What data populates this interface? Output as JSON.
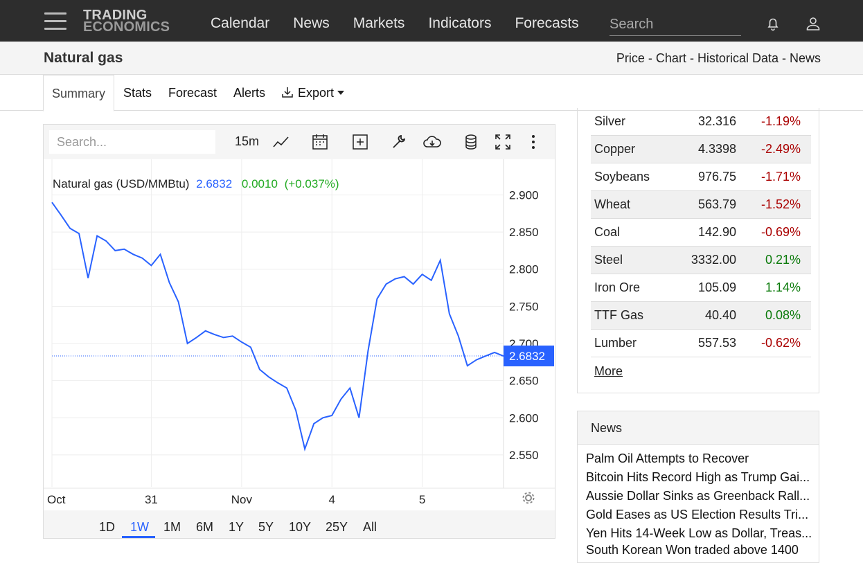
{
  "header": {
    "logo_top": "TRADING",
    "logo_bottom": "ECONOMICS",
    "nav": [
      "Calendar",
      "News",
      "Markets",
      "Indicators",
      "Forecasts"
    ],
    "search_placeholder": "Search"
  },
  "subheader": {
    "title": "Natural gas",
    "crumbs": [
      "Price",
      "Chart",
      "Historical Data",
      "News"
    ],
    "separator": " - "
  },
  "tabs": [
    "Summary",
    "Stats",
    "Forecast",
    "Alerts",
    "Export"
  ],
  "chart_toolbar": {
    "search_placeholder": "Search...",
    "interval": "15m"
  },
  "chart_data": {
    "type": "line",
    "series_label": "Natural gas (USD/MMBtu)",
    "last": "2.6832",
    "change": "0.0010",
    "change_pct": "(+0.037%)",
    "price_tag": "2.6832",
    "y_ticks": [
      "2.900",
      "2.850",
      "2.800",
      "2.750",
      "2.700",
      "2.650",
      "2.600",
      "2.550"
    ],
    "ylim": [
      2.507,
      2.948
    ],
    "x_ticks": [
      "Oct",
      "31",
      "Nov",
      "4",
      "5"
    ],
    "x": [
      0,
      2,
      4,
      6,
      8,
      10,
      12,
      14,
      16,
      18,
      20,
      22,
      24,
      26,
      28,
      30,
      32,
      34,
      36,
      38,
      40,
      42,
      44,
      46,
      48,
      50,
      52,
      54,
      56,
      58,
      60,
      62,
      64,
      66,
      68,
      70,
      72,
      74,
      76,
      78,
      80,
      82,
      84,
      86,
      88,
      90,
      92,
      94,
      96,
      98,
      100
    ],
    "values": [
      2.89,
      2.873,
      2.855,
      2.848,
      2.788,
      2.845,
      2.838,
      2.825,
      2.827,
      2.82,
      2.815,
      2.805,
      2.82,
      2.782,
      2.756,
      2.7,
      2.708,
      2.717,
      2.712,
      2.708,
      2.71,
      2.702,
      2.695,
      2.665,
      2.655,
      2.647,
      2.64,
      2.61,
      2.558,
      2.592,
      2.6,
      2.603,
      2.625,
      2.64,
      2.6,
      2.69,
      2.76,
      2.78,
      2.787,
      2.79,
      2.78,
      2.793,
      2.785,
      2.812,
      2.74,
      2.71,
      2.67,
      2.678,
      2.683,
      2.688,
      2.683
    ]
  },
  "range_buttons": [
    "1D",
    "1W",
    "1M",
    "6M",
    "1Y",
    "5Y",
    "10Y",
    "25Y",
    "All"
  ],
  "commodities": [
    {
      "name": "Silver",
      "price": "32.316",
      "change": "-1.19%"
    },
    {
      "name": "Copper",
      "price": "4.3398",
      "change": "-2.49%"
    },
    {
      "name": "Soybeans",
      "price": "976.75",
      "change": "-1.71%"
    },
    {
      "name": "Wheat",
      "price": "563.79",
      "change": "-1.52%"
    },
    {
      "name": "Coal",
      "price": "142.90",
      "change": "-0.69%"
    },
    {
      "name": "Steel",
      "price": "3332.00",
      "change": "0.21%"
    },
    {
      "name": "Iron Ore",
      "price": "105.09",
      "change": "1.14%"
    },
    {
      "name": "TTF Gas",
      "price": "40.40",
      "change": "0.08%"
    },
    {
      "name": "Lumber",
      "price": "557.53",
      "change": "-0.62%"
    }
  ],
  "more_label": "More",
  "news": {
    "title": "News",
    "items": [
      "Palm Oil Attempts to Recover",
      "Bitcoin Hits Record High as Trump Gai...",
      "Aussie Dollar Sinks as Greenback Rall...",
      "Gold Eases as US Election Results Tri...",
      "Yen Hits 14-Week Low as Dollar, Treas...",
      "South Korean Won traded above 1400"
    ]
  },
  "colors": {
    "accent": "#2962ff",
    "negative": "#aa0000",
    "positive": "#0a7a0a",
    "change_green": "#22aa22"
  }
}
